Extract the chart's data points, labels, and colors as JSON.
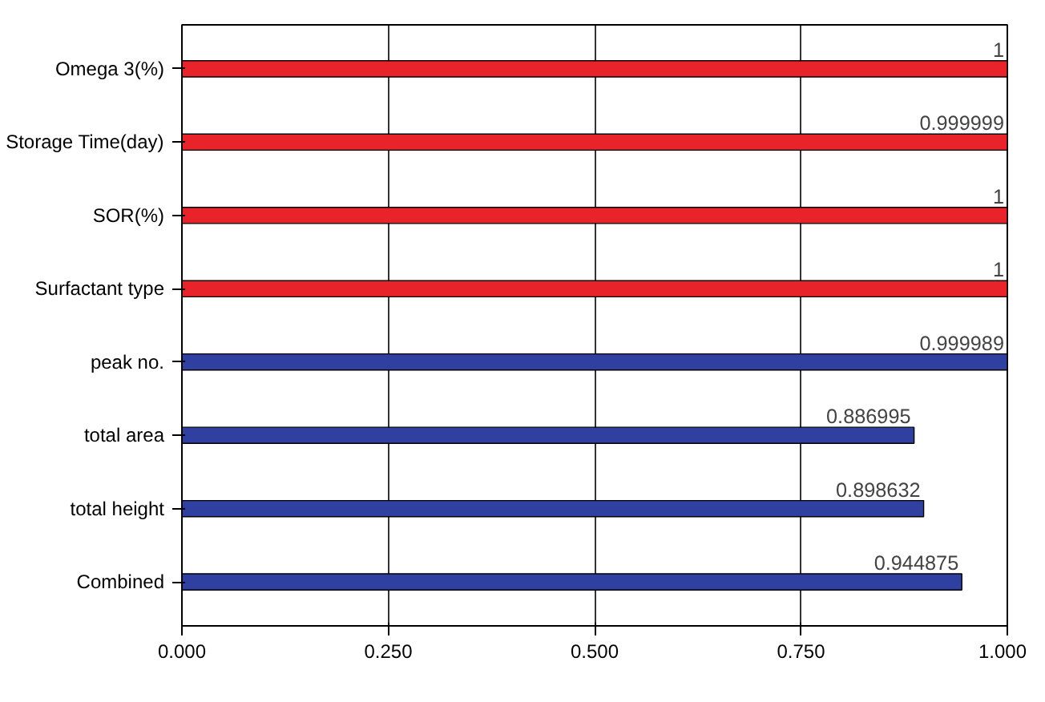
{
  "chart_data": {
    "type": "bar",
    "orientation": "horizontal",
    "categories": [
      "Omega 3(%)",
      "Storage Time(day)",
      "SOR(%)",
      "Surfactant type",
      "peak no.",
      "total area",
      "total height",
      "Combined"
    ],
    "values": [
      1,
      0.999999,
      1,
      1,
      0.999989,
      0.886995,
      0.898632,
      0.944875
    ],
    "colors": [
      "#e8242a",
      "#e8242a",
      "#e8242a",
      "#e8242a",
      "#3040a0",
      "#3040a0",
      "#3040a0",
      "#3040a0"
    ],
    "xlim": [
      0,
      1
    ],
    "xticks": [
      {
        "value": 0,
        "label": "0.000"
      },
      {
        "value": 0.25,
        "label": "0.250"
      },
      {
        "value": 0.5,
        "label": "0.500"
      },
      {
        "value": 0.75,
        "label": "0.750"
      },
      {
        "value": 1,
        "label": "1.000"
      }
    ],
    "grid": "x",
    "data_labels": true
  }
}
